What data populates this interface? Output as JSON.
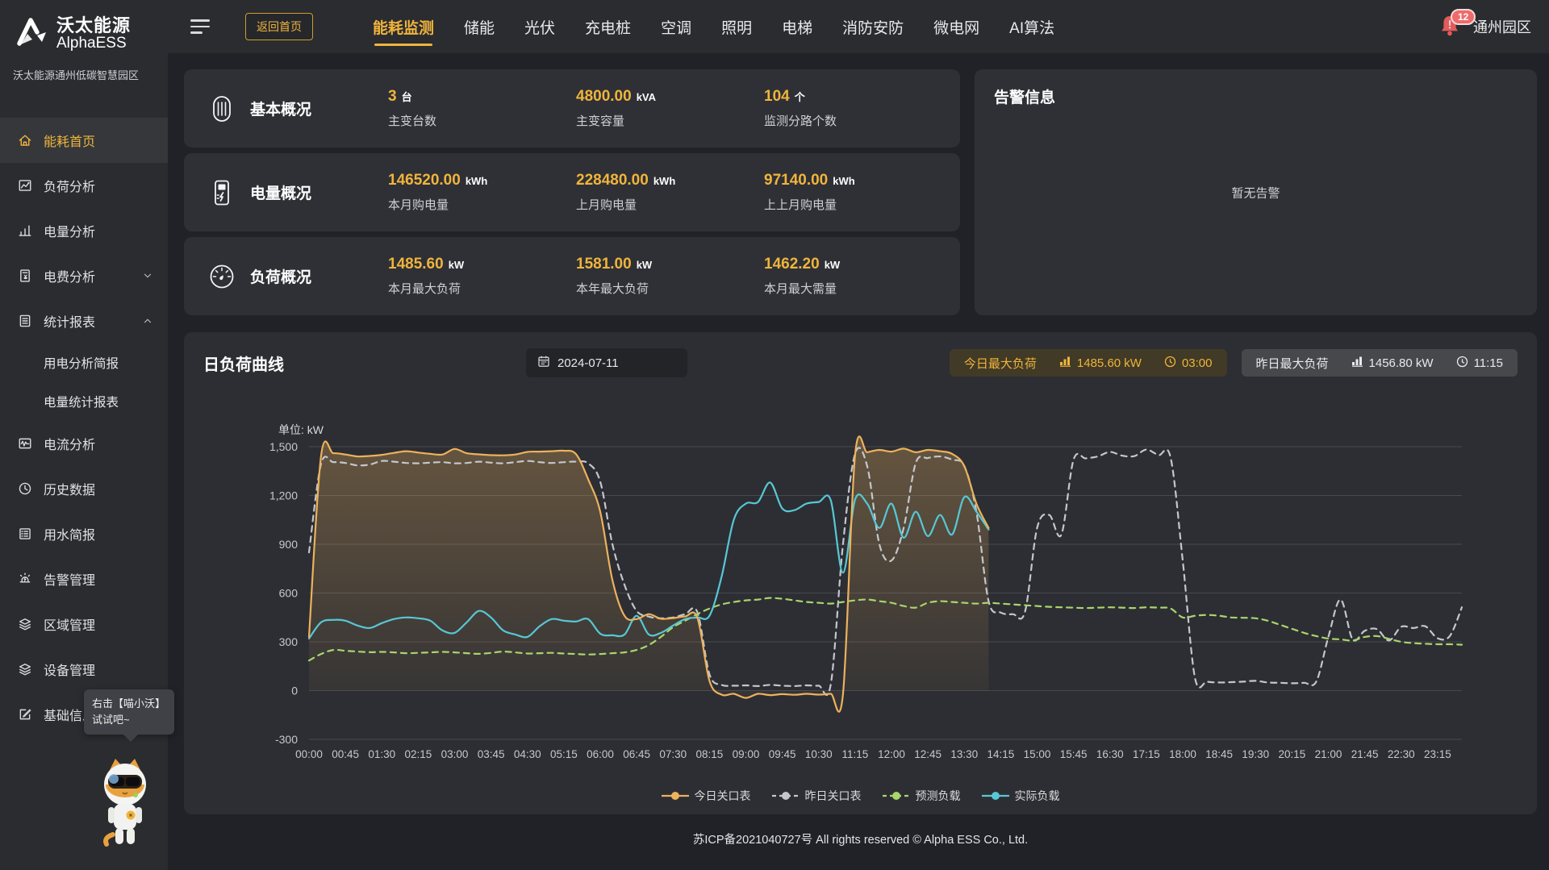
{
  "brand": {
    "title_cn": "沃太能源",
    "title_en": "AlphaESS",
    "subtitle": "沃太能源通州低碳智慧园区",
    "logo_icon": "alphaess-logo-icon"
  },
  "topbar": {
    "menu_icon": "hamburger-icon",
    "back_home_label": "返回首页",
    "tabs": [
      "能耗监测",
      "储能",
      "光伏",
      "充电桩",
      "空调",
      "照明",
      "电梯",
      "消防安防",
      "微电网",
      "AI算法"
    ],
    "active_tab": "能耗监测",
    "bell_icon": "bell-icon",
    "bell_badge_count": "12",
    "park_name": "通州园区"
  },
  "sidebar": {
    "items": [
      {
        "label": "能耗首页",
        "icon": "home-icon",
        "active": true
      },
      {
        "label": "负荷分析",
        "icon": "load-analysis-icon"
      },
      {
        "label": "电量分析",
        "icon": "energy-analysis-icon"
      },
      {
        "label": "电费分析",
        "icon": "electricity-bill-icon",
        "expand": "down"
      },
      {
        "label": "统计报表",
        "icon": "statistics-report-icon",
        "expand": "up",
        "children": [
          "用电分析简报",
          "电量统计报表"
        ]
      },
      {
        "label": "电流分析",
        "icon": "current-analysis-icon"
      },
      {
        "label": "历史数据",
        "icon": "history-data-icon"
      },
      {
        "label": "用水简报",
        "icon": "water-report-icon"
      },
      {
        "label": "告警管理",
        "icon": "alarm-manage-icon"
      },
      {
        "label": "区域管理",
        "icon": "region-manage-icon"
      },
      {
        "label": "设备管理",
        "icon": "device-manage-icon"
      },
      {
        "label": "基础信息",
        "icon": "basic-info-icon"
      }
    ],
    "mascot_tooltip_line1": "右击【喵小沃】",
    "mascot_tooltip_line2": "试试吧~",
    "mascot_icon": "cat-mascot-icon"
  },
  "cards": [
    {
      "title": "基本概况",
      "icon": "transformer-icon",
      "stats": [
        {
          "value": "3",
          "unit": "台",
          "label": "主变台数"
        },
        {
          "value": "4800.00",
          "unit": "kVA",
          "label": "主变容量"
        },
        {
          "value": "104",
          "unit": "个",
          "label": "监测分路个数"
        }
      ]
    },
    {
      "title": "电量概况",
      "icon": "electricity-meter-icon",
      "stats": [
        {
          "value": "146520.00",
          "unit": "kWh",
          "label": "本月购电量"
        },
        {
          "value": "228480.00",
          "unit": "kWh",
          "label": "上月购电量"
        },
        {
          "value": "97140.00",
          "unit": "kWh",
          "label": "上上月购电量"
        }
      ]
    },
    {
      "title": "负荷概况",
      "icon": "gauge-icon",
      "stats": [
        {
          "value": "1485.60",
          "unit": "kW",
          "label": "本月最大负荷"
        },
        {
          "value": "1581.00",
          "unit": "kW",
          "label": "本年最大负荷"
        },
        {
          "value": "1462.20",
          "unit": "kW",
          "label": "本月最大需量"
        }
      ]
    }
  ],
  "alarm_panel": {
    "title": "告警信息",
    "empty_text": "暂无告警"
  },
  "chart_panel": {
    "title": "日负荷曲线",
    "date_value": "2024-07-11",
    "date_icon": "calendar-icon",
    "today_badge": {
      "label": "今日最大负荷",
      "value_icon": "bar-chart-icon",
      "value": "1485.60 kW",
      "time_icon": "clock-icon",
      "time": "03:00"
    },
    "yesterday_badge": {
      "label": "昨日最大负荷",
      "value_icon": "bar-chart-icon",
      "value": "1456.80 kW",
      "time_icon": "clock-icon",
      "time": "11:15"
    }
  },
  "chart_data": {
    "type": "line",
    "unit_label": "单位: kW",
    "ylim": [
      -300,
      1500
    ],
    "yticks": [
      -300,
      0,
      300,
      600,
      900,
      1200,
      1500
    ],
    "grid": true,
    "legend_position": "bottom",
    "x_step_minutes": 15,
    "x_total_minutes": 1425,
    "x_tick_labels": [
      "00:00",
      "00:45",
      "01:30",
      "02:15",
      "03:00",
      "03:45",
      "04:30",
      "05:15",
      "06:00",
      "06:45",
      "07:30",
      "08:15",
      "09:00",
      "09:45",
      "10:30",
      "11:15",
      "12:00",
      "12:45",
      "13:30",
      "14:15",
      "15:00",
      "15:45",
      "16:30",
      "17:15",
      "18:00",
      "18:45",
      "19:30",
      "20:15",
      "21:00",
      "21:45",
      "22:30",
      "23:15"
    ],
    "series": [
      {
        "name": "今日关口表",
        "color": "#ecb25c",
        "style": "solid",
        "fill": true,
        "values": [
          330,
          1445,
          1460,
          1452,
          1440,
          1443,
          1450,
          1462,
          1472,
          1464,
          1456,
          1452,
          1486,
          1460,
          1453,
          1448,
          1447,
          1452,
          1468,
          1470,
          1472,
          1475,
          1455,
          1300,
          1100,
          680,
          460,
          440,
          470,
          442,
          446,
          456,
          450,
          60,
          -25,
          -20,
          -45,
          -20,
          -28,
          -22,
          -26,
          -20,
          -25,
          -20,
          -22,
          1450,
          1466,
          1480,
          1470,
          1488,
          1466,
          1480,
          1472,
          1456,
          1380,
          1150,
          1000
        ]
      },
      {
        "name": "昨日关口表",
        "color": "#c3c7cd",
        "style": "dashed",
        "fill": false,
        "values": [
          850,
          1395,
          1405,
          1400,
          1385,
          1390,
          1412,
          1408,
          1400,
          1398,
          1402,
          1405,
          1398,
          1400,
          1408,
          1402,
          1398,
          1405,
          1412,
          1405,
          1400,
          1405,
          1408,
          1398,
          1285,
          900,
          650,
          490,
          455,
          445,
          450,
          470,
          483,
          100,
          35,
          30,
          32,
          28,
          35,
          30,
          28,
          32,
          30,
          40,
          900,
          1457,
          1380,
          900,
          800,
          1000,
          1400,
          1430,
          1440,
          1420,
          1380,
          1100,
          550,
          480,
          470,
          485,
          1000,
          1080,
          960,
          1420,
          1428,
          1440,
          1468,
          1445,
          1442,
          1482,
          1448,
          1432,
          800,
          80,
          55,
          50,
          52,
          55,
          60,
          50,
          48,
          45,
          48,
          55,
          330,
          560,
          315,
          368,
          378,
          308,
          392,
          385,
          395,
          322,
          335,
          512
        ]
      },
      {
        "name": "预测负载",
        "color": "#a8d56c",
        "style": "dashed",
        "fill": false,
        "values": [
          185,
          225,
          250,
          245,
          240,
          236,
          238,
          235,
          230,
          232,
          235,
          238,
          235,
          230,
          226,
          232,
          240,
          235,
          228,
          230,
          232,
          228,
          225,
          222,
          225,
          230,
          235,
          250,
          280,
          330,
          390,
          430,
          470,
          505,
          530,
          545,
          555,
          560,
          570,
          565,
          555,
          545,
          540,
          535,
          545,
          555,
          560,
          550,
          540,
          520,
          510,
          540,
          550,
          545,
          540,
          535,
          540,
          535,
          530,
          525,
          520,
          515,
          512,
          510,
          508,
          510,
          512,
          510,
          508,
          512,
          510,
          505,
          450,
          460,
          465,
          460,
          450,
          448,
          445,
          430,
          405,
          380,
          355,
          335,
          320,
          315,
          308,
          330,
          335,
          318,
          300,
          292,
          288,
          285,
          285,
          282
        ]
      },
      {
        "name": "实际负载",
        "color": "#57c8d5",
        "style": "solid",
        "fill": false,
        "values": [
          320,
          420,
          435,
          430,
          400,
          385,
          415,
          440,
          450,
          445,
          430,
          370,
          355,
          420,
          490,
          450,
          370,
          345,
          330,
          395,
          440,
          430,
          425,
          440,
          350,
          340,
          345,
          460,
          345,
          355,
          400,
          440,
          450,
          460,
          700,
          1050,
          1150,
          1160,
          1280,
          1120,
          1110,
          1150,
          1160,
          1170,
          725,
          1175,
          1150,
          1000,
          1150,
          940,
          1100,
          950,
          1080,
          960,
          1190,
          1100,
          990
        ]
      }
    ]
  },
  "footer_text": "苏ICP备2021040727号 All rights reserved © Alpha ESS Co., Ltd."
}
